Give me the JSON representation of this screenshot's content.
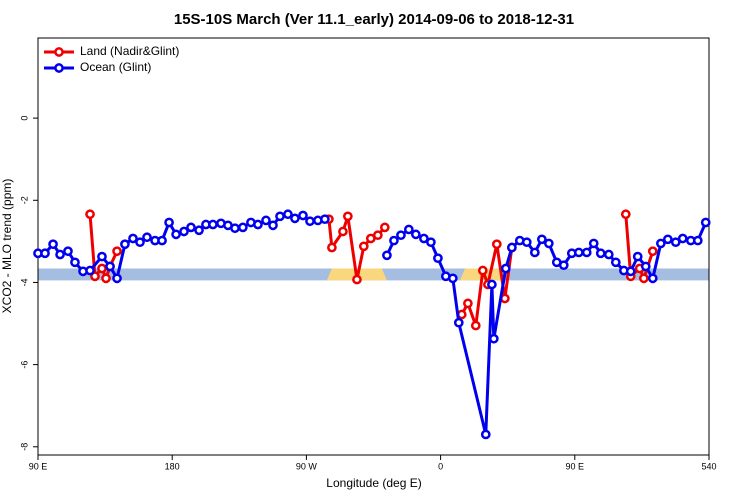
{
  "chart_data": {
    "type": "line",
    "title": "15S-10S March (Ver 11.1_early)   2014-09-06 to 2018-12-31",
    "xlabel": "Longitude (deg E)",
    "ylabel": "XCO2 - MLO trend (ppm)",
    "xlim": [
      90,
      540
    ],
    "xticks": [
      {
        "value": 90,
        "label": "90 E"
      },
      180,
      {
        "value": 270,
        "label": "90 W"
      },
      {
        "value": 360,
        "label": "0"
      },
      {
        "value": 450,
        "label": "90 E"
      },
      540
    ],
    "ylim": [
      -8.2,
      1.95
    ],
    "yticks": [
      0,
      -2,
      -4,
      -6,
      -8
    ],
    "grid": false,
    "legend": "top-left",
    "band": {
      "ylim": [
        -3.95,
        -3.66
      ],
      "color": "#a4bde0"
    },
    "highlight_ranges": [
      [
        283.7,
        324
      ],
      [
        373,
        403
      ]
    ],
    "highlight_color": "#f9d77e",
    "series": [
      {
        "name": "Land (Nadir&Glint)",
        "color": "#ee0000",
        "x": [
          124.9,
          128.2,
          132.9,
          135.6,
          138.3,
          143,
          200,
          285.1,
          287.1,
          294.5,
          297.8,
          303.9,
          308.5,
          313.2,
          317.9,
          322.6,
          340,
          374.2,
          378.3,
          383.6,
          388.3,
          391.7,
          397.7,
          403.1,
          407.8,
          450,
          484.2,
          487.5,
          493.5,
          496.3,
          502.3
        ],
        "values": [
          -2.34,
          -3.85,
          -3.66,
          -3.9,
          -3.61,
          -3.24,
          null,
          -2.46,
          -3.15,
          -2.76,
          -2.39,
          -3.93,
          -3.12,
          -2.93,
          -2.85,
          -2.66,
          null,
          -4.78,
          -4.51,
          -5.05,
          -3.71,
          -4.05,
          -3.07,
          -4.39,
          -3.15,
          null,
          -2.34,
          -3.85,
          -3.66,
          -3.9,
          -3.24
        ]
      },
      {
        "name": "Ocean (Glint)",
        "color": "#0000ee",
        "x": [
          90,
          94.7,
          100.1,
          104.8,
          110.1,
          114.8,
          120.2,
          124.9,
          132.9,
          138.3,
          143,
          148.3,
          153.7,
          158.4,
          163.1,
          168.5,
          173.2,
          177.9,
          182.6,
          187.9,
          192.6,
          198,
          202.6,
          207.3,
          212.7,
          217.4,
          222.1,
          227.4,
          232.8,
          237.5,
          242.9,
          247.6,
          252.3,
          257.6,
          262.3,
          267.7,
          272.4,
          277.7,
          282.4,
          300,
          324,
          328.7,
          333.4,
          338.7,
          343.4,
          348.8,
          353.5,
          358.2,
          363.5,
          368.2,
          372.2,
          390.3,
          394.4,
          395.7,
          403.7,
          407.8,
          413.1,
          417.8,
          423.2,
          427.9,
          432.6,
          437.9,
          442.6,
          448,
          452.7,
          458,
          462.7,
          467.4,
          472.8,
          477.5,
          482.9,
          487.5,
          492.2,
          497.6,
          502.3,
          507.7,
          512.4,
          517.7,
          522.4,
          527.8,
          532.5,
          537.8
        ],
        "values": [
          -3.29,
          -3.29,
          -3.07,
          -3.32,
          -3.24,
          -3.51,
          -3.73,
          -3.71,
          -3.37,
          -3.61,
          -3.9,
          -3.07,
          -2.93,
          -3.02,
          -2.9,
          -2.98,
          -2.98,
          -2.54,
          -2.83,
          -2.76,
          -2.66,
          -2.73,
          -2.59,
          -2.59,
          -2.56,
          -2.61,
          -2.68,
          -2.66,
          -2.54,
          -2.59,
          -2.49,
          -2.61,
          -2.39,
          -2.34,
          -2.44,
          -2.37,
          -2.51,
          -2.49,
          -2.46,
          null,
          -3.34,
          -2.98,
          -2.85,
          -2.71,
          -2.83,
          -2.93,
          -3.02,
          -3.41,
          -3.85,
          -3.9,
          -4.98,
          -7.7,
          -4.05,
          -5.37,
          -3.66,
          -3.15,
          -2.98,
          -3.02,
          -3.27,
          -2.95,
          -3.05,
          -3.51,
          -3.58,
          -3.29,
          -3.27,
          -3.27,
          -3.05,
          -3.29,
          -3.32,
          -3.51,
          -3.71,
          -3.73,
          -3.37,
          -3.61,
          -3.9,
          -3.05,
          -2.95,
          -3.02,
          -2.93,
          -2.98,
          -2.98,
          -2.54
        ]
      }
    ]
  }
}
